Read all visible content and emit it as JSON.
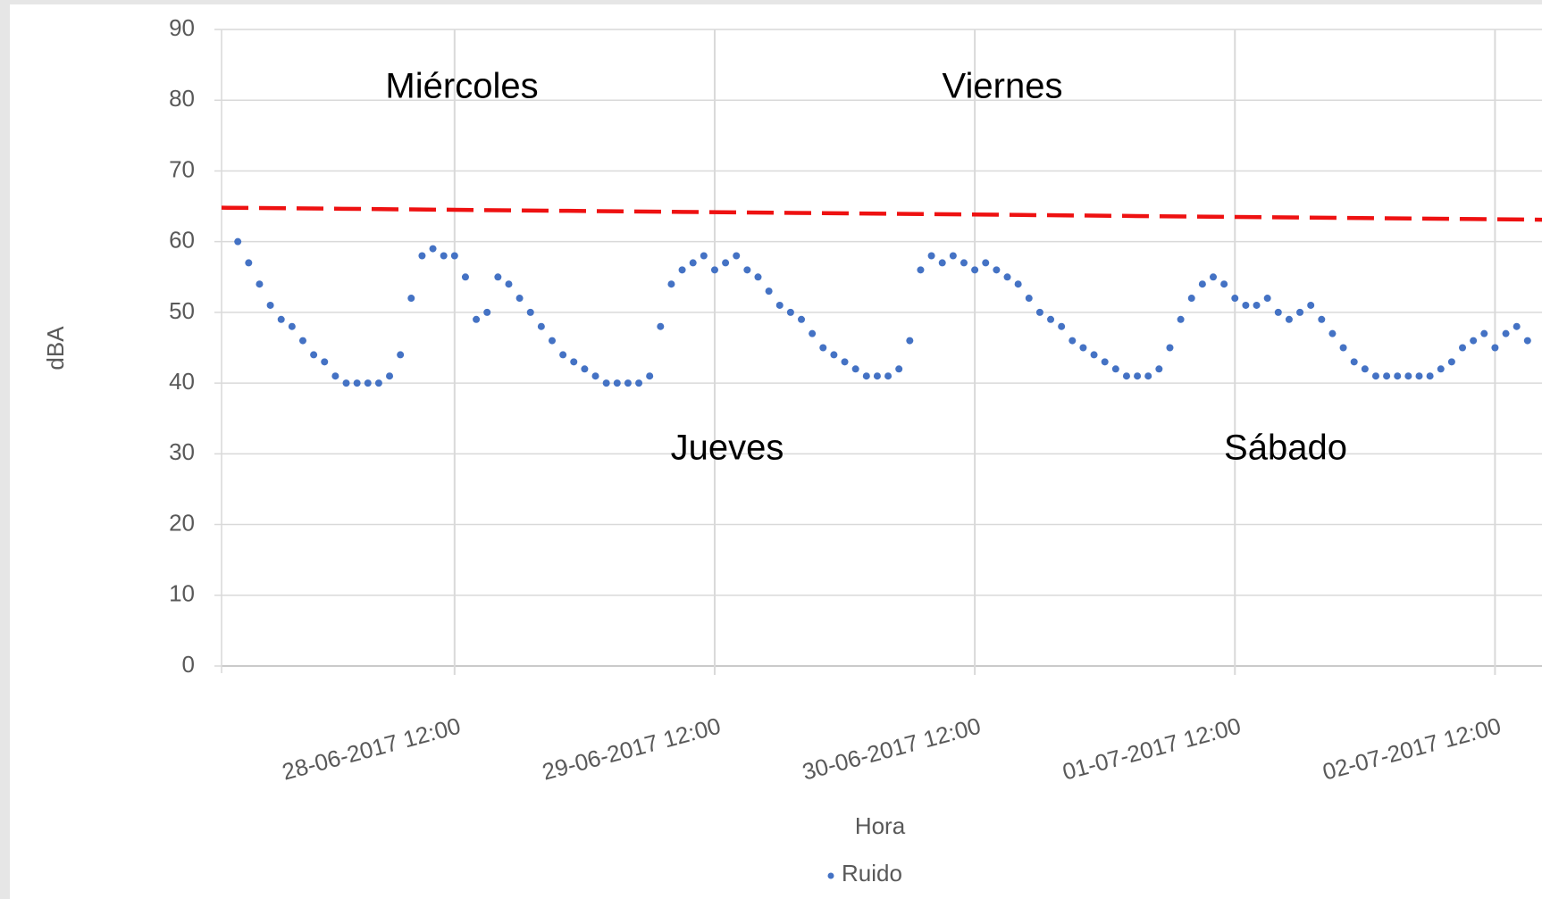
{
  "chart_data": {
    "type": "scatter",
    "x_label": "Hora",
    "y_label": "dBA",
    "xlim": [
      "27-06-2017 14:30",
      "02-07-2017 16:30"
    ],
    "xticks": [
      "28-06-2017 12:00",
      "29-06-2017 12:00",
      "30-06-2017 12:00",
      "01-07-2017 12:00",
      "02-07-2017 12:00"
    ],
    "ylim": [
      0,
      90
    ],
    "yticks": [
      0,
      10,
      20,
      30,
      40,
      50,
      60,
      70,
      80,
      90
    ],
    "grid": true,
    "legend": "bottom",
    "annotations": [
      "Miércoles",
      "Jueves",
      "Viernes",
      "Sábado"
    ],
    "trend": {
      "color": "#ee1111",
      "x": [
        "27-06-2017 14:30",
        "02-07-2017 16:30"
      ],
      "values": [
        64.8,
        63.1
      ]
    },
    "series": [
      {
        "name": "Ruido",
        "color": "#4472c4",
        "x": [
          "27-06-2017 16:00",
          "27-06-2017 17:00",
          "27-06-2017 18:00",
          "27-06-2017 19:00",
          "27-06-2017 20:00",
          "27-06-2017 21:00",
          "27-06-2017 22:00",
          "27-06-2017 23:00",
          "28-06-2017 00:00",
          "28-06-2017 01:00",
          "28-06-2017 02:00",
          "28-06-2017 03:00",
          "28-06-2017 04:00",
          "28-06-2017 05:00",
          "28-06-2017 06:00",
          "28-06-2017 07:00",
          "28-06-2017 08:00",
          "28-06-2017 09:00",
          "28-06-2017 10:00",
          "28-06-2017 11:00",
          "28-06-2017 12:00",
          "28-06-2017 13:00",
          "28-06-2017 14:00",
          "28-06-2017 15:00",
          "28-06-2017 16:00",
          "28-06-2017 17:00",
          "28-06-2017 18:00",
          "28-06-2017 19:00",
          "28-06-2017 20:00",
          "28-06-2017 21:00",
          "28-06-2017 22:00",
          "28-06-2017 23:00",
          "29-06-2017 00:00",
          "29-06-2017 01:00",
          "29-06-2017 02:00",
          "29-06-2017 03:00",
          "29-06-2017 04:00",
          "29-06-2017 05:00",
          "29-06-2017 06:00",
          "29-06-2017 07:00",
          "29-06-2017 08:00",
          "29-06-2017 09:00",
          "29-06-2017 10:00",
          "29-06-2017 11:00",
          "29-06-2017 12:00",
          "29-06-2017 13:00",
          "29-06-2017 14:00",
          "29-06-2017 15:00",
          "29-06-2017 16:00",
          "29-06-2017 17:00",
          "29-06-2017 18:00",
          "29-06-2017 19:00",
          "29-06-2017 20:00",
          "29-06-2017 21:00",
          "29-06-2017 22:00",
          "29-06-2017 23:00",
          "30-06-2017 00:00",
          "30-06-2017 01:00",
          "30-06-2017 02:00",
          "30-06-2017 03:00",
          "30-06-2017 04:00",
          "30-06-2017 05:00",
          "30-06-2017 06:00",
          "30-06-2017 07:00",
          "30-06-2017 08:00",
          "30-06-2017 09:00",
          "30-06-2017 10:00",
          "30-06-2017 11:00",
          "30-06-2017 12:00",
          "30-06-2017 13:00",
          "30-06-2017 14:00",
          "30-06-2017 15:00",
          "30-06-2017 16:00",
          "30-06-2017 17:00",
          "30-06-2017 18:00",
          "30-06-2017 19:00",
          "30-06-2017 20:00",
          "30-06-2017 21:00",
          "30-06-2017 22:00",
          "30-06-2017 23:00",
          "01-07-2017 00:00",
          "01-07-2017 01:00",
          "01-07-2017 02:00",
          "01-07-2017 03:00",
          "01-07-2017 04:00",
          "01-07-2017 05:00",
          "01-07-2017 06:00",
          "01-07-2017 07:00",
          "01-07-2017 08:00",
          "01-07-2017 09:00",
          "01-07-2017 10:00",
          "01-07-2017 11:00",
          "01-07-2017 12:00",
          "01-07-2017 13:00",
          "01-07-2017 14:00",
          "01-07-2017 15:00",
          "01-07-2017 16:00",
          "01-07-2017 17:00",
          "01-07-2017 18:00",
          "01-07-2017 19:00",
          "01-07-2017 20:00",
          "01-07-2017 21:00",
          "01-07-2017 22:00",
          "01-07-2017 23:00",
          "02-07-2017 00:00",
          "02-07-2017 01:00",
          "02-07-2017 02:00",
          "02-07-2017 03:00",
          "02-07-2017 04:00",
          "02-07-2017 05:00",
          "02-07-2017 06:00",
          "02-07-2017 07:00",
          "02-07-2017 08:00",
          "02-07-2017 09:00",
          "02-07-2017 10:00",
          "02-07-2017 11:00",
          "02-07-2017 12:00",
          "02-07-2017 13:00",
          "02-07-2017 14:00",
          "02-07-2017 15:00"
        ],
        "values": [
          60,
          57,
          54,
          51,
          49,
          48,
          46,
          44,
          43,
          41,
          40,
          40,
          40,
          40,
          41,
          44,
          52,
          58,
          59,
          58,
          58,
          55,
          49,
          50,
          55,
          54,
          52,
          50,
          48,
          46,
          44,
          43,
          42,
          41,
          40,
          40,
          40,
          40,
          41,
          48,
          54,
          56,
          57,
          58,
          56,
          57,
          58,
          56,
          55,
          53,
          51,
          50,
          49,
          47,
          45,
          44,
          43,
          42,
          41,
          41,
          41,
          42,
          46,
          56,
          58,
          57,
          58,
          57,
          56,
          57,
          56,
          55,
          54,
          52,
          50,
          49,
          48,
          46,
          45,
          44,
          43,
          42,
          41,
          41,
          41,
          42,
          45,
          49,
          52,
          54,
          55,
          54,
          52,
          51,
          51,
          52,
          50,
          49,
          50,
          51,
          49,
          47,
          45,
          43,
          42,
          41,
          41,
          41,
          41,
          41,
          41,
          42,
          43,
          45,
          46,
          47,
          45,
          47,
          48,
          46
        ]
      }
    ]
  }
}
